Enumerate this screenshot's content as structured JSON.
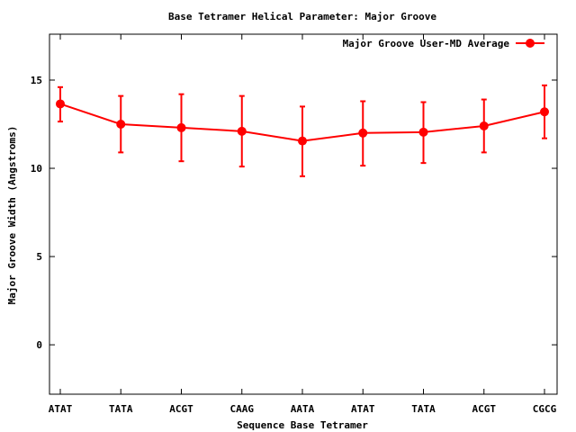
{
  "chart_data": {
    "type": "line",
    "title": "Base Tetramer Helical Parameter: Major Groove",
    "xlabel": "Sequence Base Tetramer",
    "ylabel": "Major Groove Width (Angstroms)",
    "categories": [
      "ATAT",
      "TATA",
      "ACGT",
      "CAAG",
      "AATA",
      "ATAT",
      "TATA",
      "ACGT",
      "CGCG"
    ],
    "ylim": [
      -2.8,
      17.6
    ],
    "yticks": [
      0,
      5,
      10,
      15
    ],
    "grid": false,
    "legend_position": "top-right",
    "series": [
      {
        "name": "Major Groove User-MD Average",
        "color": "#ff0000",
        "values": [
          13.65,
          12.5,
          12.3,
          12.1,
          11.55,
          12.0,
          12.05,
          12.4,
          13.2
        ],
        "error_low": [
          12.65,
          10.9,
          10.4,
          10.1,
          9.55,
          10.15,
          10.3,
          10.9,
          11.7
        ],
        "error_high": [
          14.6,
          14.1,
          14.2,
          14.1,
          13.5,
          13.8,
          13.75,
          13.9,
          14.7
        ]
      }
    ]
  }
}
